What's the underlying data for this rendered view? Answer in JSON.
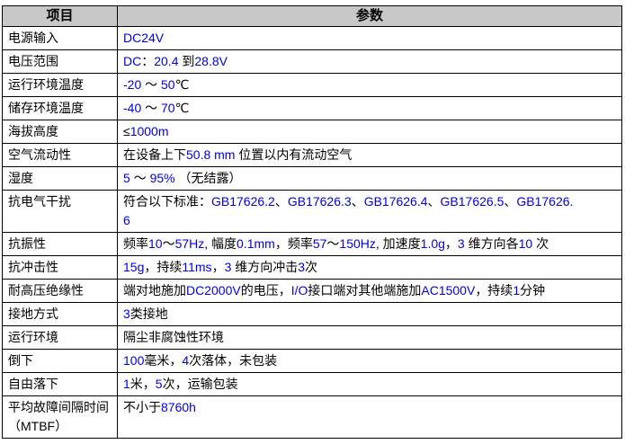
{
  "table": {
    "colors": {
      "header_bg": "#C8C8C8",
      "latin_text_blue": "#0000E0",
      "border": "#000000",
      "label_text": "#000000"
    },
    "headers": {
      "item": "项目",
      "param": "参数"
    },
    "rows": [
      {
        "k": "电源输入",
        "v": "DC24V"
      },
      {
        "k": "电压范围",
        "v": "DC：20.4 到28.8V"
      },
      {
        "k": "运行环境温度",
        "v": "-20 ～ 50℃"
      },
      {
        "k": "储存环境温度",
        "v": "-40 ～ 70℃"
      },
      {
        "k": "海拔高度",
        "v": "≤1000m"
      },
      {
        "k": "空气流动性",
        "v": "在设备上下50.8 mm 位置以内有流动空气"
      },
      {
        "k": "湿度",
        "v": "5 ～ 95% （无结露）"
      },
      {
        "k": "抗电气干扰",
        "v": "符合以下标准：GB17626.2、GB17626.3、GB17626.4、GB17626.5、GB17626.\n6"
      },
      {
        "k": "抗振性",
        "v": "频率10～57Hz, 幅度0.1mm，频率57～150Hz, 加速度1.0g，3 维方向各10 次"
      },
      {
        "k": "抗冲击性",
        "v": "15g，持续11ms，3 维方向冲击3次"
      },
      {
        "k": "耐高压绝缘性",
        "v": "端对地施加DC2000V的电压，I/O接口端对其他端施加AC1500V，持续1分钟"
      },
      {
        "k": "接地方式",
        "v": "3类接地"
      },
      {
        "k": "运行环境",
        "v": "隔尘非腐蚀性环境"
      },
      {
        "k": "倒下",
        "v": "100毫米，4次落体，未包装"
      },
      {
        "k": "自由落下",
        "v": "1米，5次，运输包装"
      },
      {
        "k": "平均故障间隔时间（MTBF）",
        "v": "不小于8760h"
      }
    ]
  }
}
